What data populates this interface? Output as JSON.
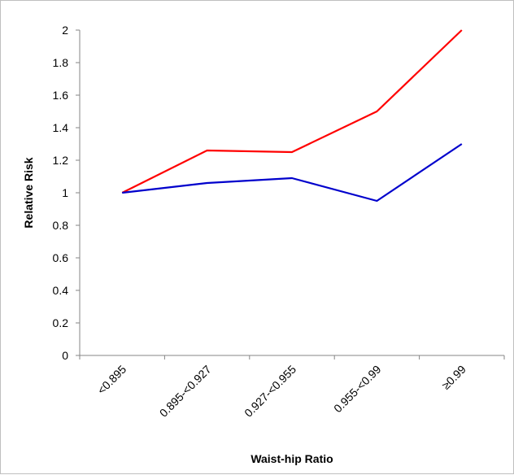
{
  "chart_data": {
    "type": "line",
    "title": "",
    "xlabel": "Waist-hip Ratio",
    "ylabel": "Relative Risk",
    "categories": [
      "<0.895",
      "0.895-<0.927",
      "0.927-<0.955",
      "0.955-<0.99",
      "≥0.99"
    ],
    "ylim": [
      0,
      2
    ],
    "yticks": [
      "0",
      "0.2",
      "0.4",
      "0.6",
      "0.8",
      "1",
      "1.2",
      "1.4",
      "1.6",
      "1.8",
      "2"
    ],
    "grid": false,
    "legend": "none",
    "series": [
      {
        "values": [
          1.0,
          1.26,
          1.25,
          1.5,
          2.0
        ],
        "color": "#ff0000"
      },
      {
        "values": [
          1.0,
          1.06,
          1.09,
          0.95,
          1.3
        ],
        "color": "#0000cc"
      }
    ]
  }
}
